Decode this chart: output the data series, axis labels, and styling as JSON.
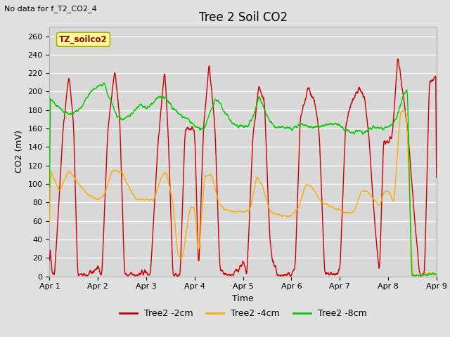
{
  "title": "Tree 2 Soil CO2",
  "subtitle": "No data for f_T2_CO2_4",
  "ylabel": "CO2 (mV)",
  "xlabel": "Time",
  "box_label": "TZ_soilco2",
  "ylim": [
    0,
    270
  ],
  "xlim": [
    0,
    8
  ],
  "xtick_positions": [
    0,
    1,
    2,
    3,
    4,
    5,
    6,
    7,
    8
  ],
  "xtick_labels": [
    "Apr 1",
    "Apr 2",
    "Apr 3",
    "Apr 4",
    "Apr 5",
    "Apr 6",
    "Apr 7",
    "Apr 8",
    "Apr 9"
  ],
  "ytick_positions": [
    0,
    20,
    40,
    60,
    80,
    100,
    120,
    140,
    160,
    180,
    200,
    220,
    240,
    260
  ],
  "legend_entries": [
    "Tree2 -2cm",
    "Tree2 -4cm",
    "Tree2 -8cm"
  ],
  "line_colors": [
    "#cc0000",
    "#ffaa00",
    "#00cc00"
  ],
  "background_color": "#e0e0e0",
  "plot_bg_color": "#d8d8d8",
  "grid_color": "#ffffff",
  "title_fontsize": 12,
  "label_fontsize": 9,
  "tick_fontsize": 8,
  "red_segments": [
    [
      0,
      [
        [
          0.0,
          35
        ],
        [
          0.04,
          10
        ],
        [
          0.1,
          0
        ],
        [
          0.28,
          160
        ],
        [
          0.4,
          220
        ],
        [
          0.5,
          160
        ],
        [
          0.58,
          0
        ],
        [
          0.8,
          0
        ],
        [
          1.0,
          10
        ]
      ]
    ],
    [
      1,
      [
        [
          0.0,
          10
        ],
        [
          0.08,
          0
        ],
        [
          0.2,
          155
        ],
        [
          0.35,
          225
        ],
        [
          0.45,
          170
        ],
        [
          0.55,
          0
        ],
        [
          0.75,
          0
        ],
        [
          1.0,
          5
        ]
      ]
    ],
    [
      2,
      [
        [
          0.0,
          5
        ],
        [
          0.08,
          0
        ],
        [
          0.25,
          150
        ],
        [
          0.38,
          225
        ],
        [
          0.45,
          155
        ],
        [
          0.55,
          0
        ],
        [
          0.7,
          0
        ],
        [
          0.8,
          160
        ],
        [
          1.0,
          160
        ]
      ]
    ],
    [
      3,
      [
        [
          0.0,
          160
        ],
        [
          0.08,
          0
        ],
        [
          0.18,
          160
        ],
        [
          0.3,
          230
        ],
        [
          0.42,
          160
        ],
        [
          0.52,
          5
        ],
        [
          0.65,
          0
        ],
        [
          0.78,
          0
        ],
        [
          1.0,
          15
        ]
      ]
    ],
    [
      4,
      [
        [
          0.0,
          15
        ],
        [
          0.08,
          0
        ],
        [
          0.2,
          150
        ],
        [
          0.32,
          205
        ],
        [
          0.44,
          190
        ],
        [
          0.55,
          40
        ],
        [
          0.62,
          15
        ],
        [
          0.72,
          0
        ],
        [
          0.85,
          0
        ],
        [
          1.0,
          0
        ]
      ]
    ],
    [
      5,
      [
        [
          0.0,
          0
        ],
        [
          0.08,
          12
        ],
        [
          0.18,
          170
        ],
        [
          0.35,
          205
        ],
        [
          0.48,
          190
        ],
        [
          0.58,
          150
        ],
        [
          0.68,
          5
        ],
        [
          0.78,
          0
        ],
        [
          1.0,
          3
        ]
      ]
    ],
    [
      6,
      [
        [
          0.0,
          3
        ],
        [
          0.12,
          165
        ],
        [
          0.25,
          190
        ],
        [
          0.4,
          205
        ],
        [
          0.52,
          190
        ],
        [
          0.6,
          150
        ],
        [
          0.72,
          58
        ],
        [
          0.82,
          0
        ],
        [
          0.9,
          145
        ],
        [
          1.0,
          145
        ]
      ]
    ],
    [
      7,
      [
        [
          0.0,
          145
        ],
        [
          0.08,
          150
        ],
        [
          0.2,
          240
        ],
        [
          0.3,
          200
        ],
        [
          0.4,
          160
        ],
        [
          0.55,
          60
        ],
        [
          0.65,
          0
        ],
        [
          0.75,
          0
        ],
        [
          0.85,
          210
        ],
        [
          1.0,
          215
        ]
      ]
    ]
  ],
  "orange_segments": [
    [
      0,
      [
        [
          0.0,
          118
        ],
        [
          0.2,
          92
        ],
        [
          0.4,
          115
        ],
        [
          0.6,
          100
        ],
        [
          0.8,
          88
        ],
        [
          1.0,
          83
        ]
      ]
    ],
    [
      1,
      [
        [
          0.0,
          83
        ],
        [
          0.15,
          90
        ],
        [
          0.3,
          115
        ],
        [
          0.5,
          113
        ],
        [
          0.65,
          95
        ],
        [
          0.8,
          83
        ],
        [
          1.0,
          83
        ]
      ]
    ],
    [
      2,
      [
        [
          0.0,
          83
        ],
        [
          0.15,
          82
        ],
        [
          0.28,
          103
        ],
        [
          0.4,
          115
        ],
        [
          0.55,
          80
        ],
        [
          0.65,
          22
        ],
        [
          0.75,
          20
        ],
        [
          0.9,
          73
        ],
        [
          1.0,
          75
        ]
      ]
    ],
    [
      3,
      [
        [
          0.0,
          75
        ],
        [
          0.08,
          20
        ],
        [
          0.2,
          108
        ],
        [
          0.35,
          110
        ],
        [
          0.5,
          80
        ],
        [
          0.62,
          72
        ],
        [
          0.78,
          70
        ],
        [
          1.0,
          70
        ]
      ]
    ],
    [
      4,
      [
        [
          0.0,
          70
        ],
        [
          0.15,
          73
        ],
        [
          0.28,
          108
        ],
        [
          0.4,
          98
        ],
        [
          0.55,
          71
        ],
        [
          0.68,
          68
        ],
        [
          0.82,
          65
        ],
        [
          1.0,
          65
        ]
      ]
    ],
    [
      5,
      [
        [
          0.0,
          65
        ],
        [
          0.15,
          75
        ],
        [
          0.3,
          100
        ],
        [
          0.45,
          96
        ],
        [
          0.58,
          82
        ],
        [
          0.7,
          78
        ],
        [
          0.85,
          75
        ],
        [
          1.0,
          72
        ]
      ]
    ],
    [
      6,
      [
        [
          0.0,
          72
        ],
        [
          0.15,
          68
        ],
        [
          0.3,
          70
        ],
        [
          0.45,
          93
        ],
        [
          0.58,
          92
        ],
        [
          0.7,
          83
        ],
        [
          0.82,
          75
        ],
        [
          0.92,
          93
        ],
        [
          1.0,
          93
        ]
      ]
    ],
    [
      7,
      [
        [
          0.0,
          93
        ],
        [
          0.12,
          80
        ],
        [
          0.25,
          180
        ],
        [
          0.38,
          178
        ],
        [
          0.5,
          0
        ],
        [
          0.65,
          0
        ],
        [
          0.8,
          3
        ],
        [
          1.0,
          3
        ]
      ]
    ]
  ],
  "green_segments": [
    [
      0,
      [
        [
          0.0,
          195
        ],
        [
          0.1,
          188
        ],
        [
          0.2,
          182
        ],
        [
          0.32,
          178
        ],
        [
          0.42,
          175
        ],
        [
          0.55,
          178
        ],
        [
          0.68,
          185
        ],
        [
          0.82,
          200
        ],
        [
          1.0,
          205
        ]
      ]
    ],
    [
      1,
      [
        [
          0.0,
          205
        ],
        [
          0.12,
          210
        ],
        [
          0.25,
          192
        ],
        [
          0.38,
          175
        ],
        [
          0.5,
          170
        ],
        [
          0.62,
          173
        ],
        [
          0.75,
          180
        ],
        [
          0.88,
          185
        ],
        [
          1.0,
          183
        ]
      ]
    ],
    [
      2,
      [
        [
          0.0,
          183
        ],
        [
          0.12,
          186
        ],
        [
          0.22,
          193
        ],
        [
          0.32,
          195
        ],
        [
          0.45,
          190
        ],
        [
          0.55,
          183
        ],
        [
          0.65,
          177
        ],
        [
          0.78,
          172
        ],
        [
          0.9,
          168
        ],
        [
          1.0,
          163
        ]
      ]
    ],
    [
      3,
      [
        [
          0.0,
          163
        ],
        [
          0.12,
          160
        ],
        [
          0.22,
          163
        ],
        [
          0.33,
          180
        ],
        [
          0.45,
          192
        ],
        [
          0.55,
          185
        ],
        [
          0.65,
          175
        ],
        [
          0.78,
          165
        ],
        [
          0.9,
          163
        ],
        [
          1.0,
          162
        ]
      ]
    ],
    [
      4,
      [
        [
          0.0,
          162
        ],
        [
          0.12,
          163
        ],
        [
          0.22,
          175
        ],
        [
          0.33,
          195
        ],
        [
          0.45,
          180
        ],
        [
          0.55,
          168
        ],
        [
          0.65,
          162
        ],
        [
          0.78,
          162
        ],
        [
          0.9,
          160
        ],
        [
          1.0,
          160
        ]
      ]
    ],
    [
      5,
      [
        [
          0.0,
          160
        ],
        [
          0.12,
          162
        ],
        [
          0.22,
          165
        ],
        [
          0.35,
          163
        ],
        [
          0.48,
          162
        ],
        [
          0.6,
          163
        ],
        [
          0.72,
          165
        ],
        [
          0.85,
          165
        ],
        [
          1.0,
          164
        ]
      ]
    ],
    [
      6,
      [
        [
          0.0,
          164
        ],
        [
          0.12,
          158
        ],
        [
          0.25,
          155
        ],
        [
          0.38,
          158
        ],
        [
          0.5,
          155
        ],
        [
          0.62,
          160
        ],
        [
          0.75,
          162
        ],
        [
          0.88,
          160
        ],
        [
          1.0,
          163
        ]
      ]
    ],
    [
      7,
      [
        [
          0.0,
          163
        ],
        [
          0.1,
          165
        ],
        [
          0.2,
          175
        ],
        [
          0.3,
          195
        ],
        [
          0.4,
          205
        ],
        [
          0.48,
          0
        ],
        [
          0.55,
          0
        ],
        [
          0.65,
          0
        ],
        [
          0.8,
          0
        ],
        [
          1.0,
          2
        ]
      ]
    ]
  ]
}
